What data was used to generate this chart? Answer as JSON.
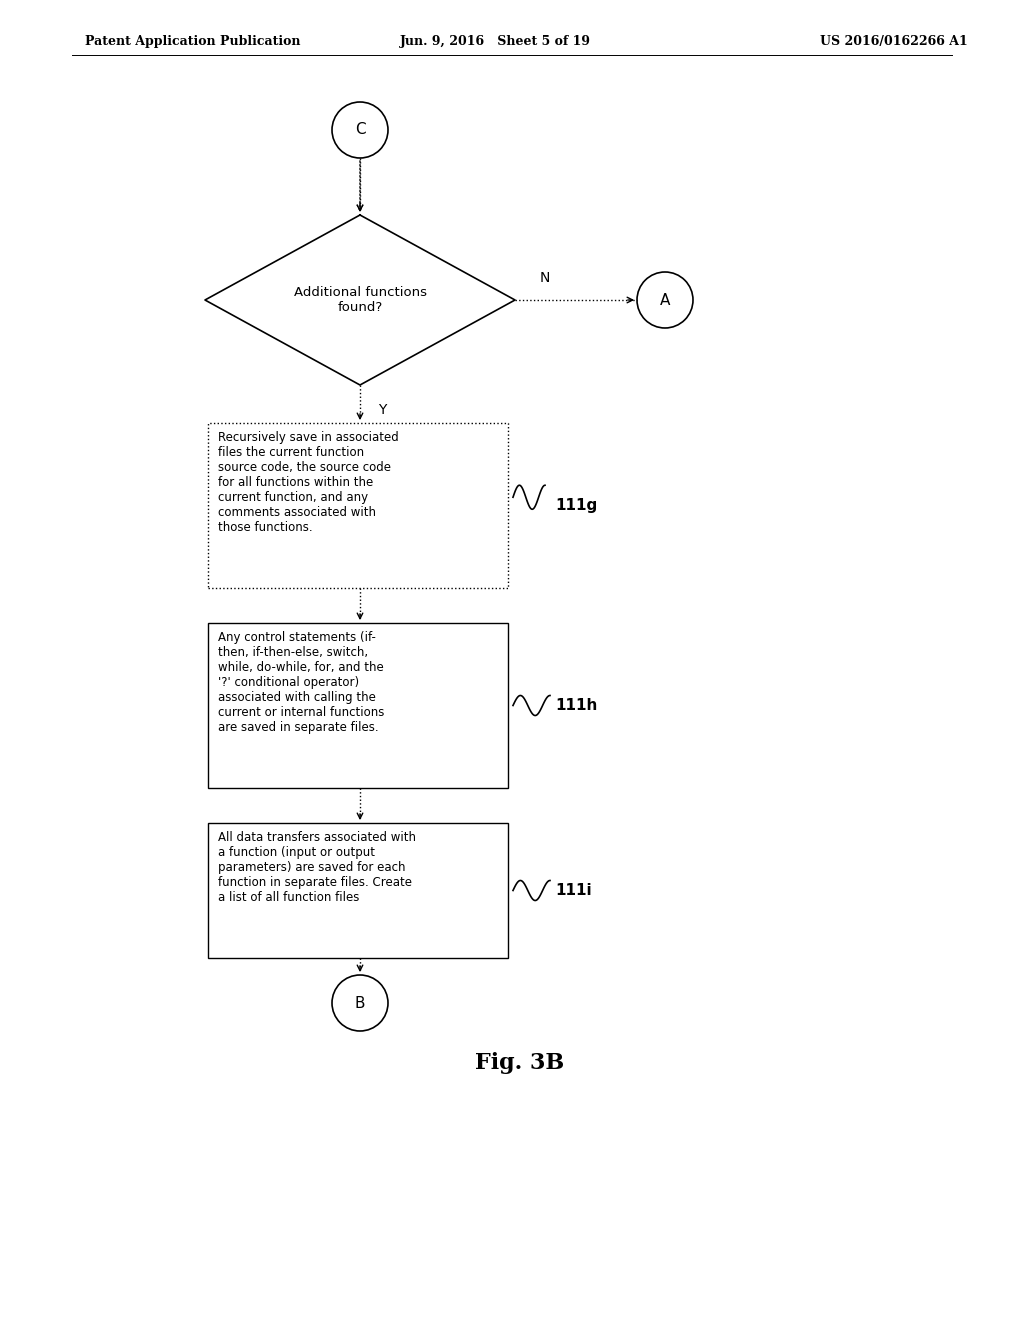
{
  "bg_color": "#ffffff",
  "header_left": "Patent Application Publication",
  "header_mid": "Jun. 9, 2016   Sheet 5 of 19",
  "header_right": "US 2016/0162266 A1",
  "fig_label": "Fig. 3B",
  "connector_top": "C",
  "connector_bottom": "B",
  "connector_right": "A",
  "diamond_text": "Additional functions\nfound?",
  "label_N": "N",
  "label_Y": "Y",
  "box1_text": "Recursively save in associated\nfiles the current function\nsource code, the source code\nfor all functions within the\ncurrent function, and any\ncomments associated with\nthose functions.",
  "box1_label": "111g",
  "box2_text": "Any control statements (if-\nthen, if-then-else, switch,\nwhile, do-while, for, and the\n'?' conditional operator)\nassociated with calling the\ncurrent or internal functions\nare saved in separate files.",
  "box2_label": "111h",
  "box3_text": "All data transfers associated with\na function (input or output\nparameters) are saved for each\nfunction in separate files. Create\na list of all function files",
  "box3_label": "111i"
}
